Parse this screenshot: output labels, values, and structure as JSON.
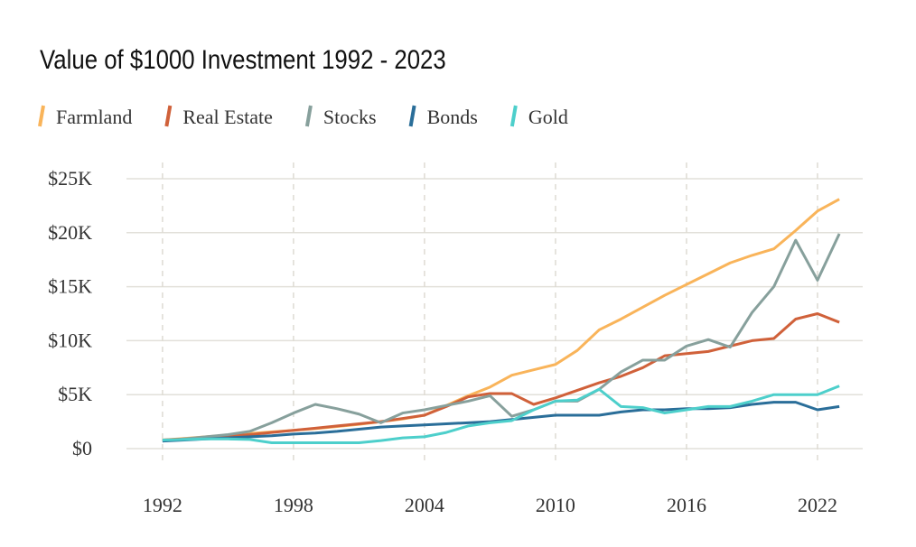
{
  "chart_data": {
    "type": "line",
    "title": "Value of $1000 Investment 1992 - 2023",
    "x": [
      1992,
      1993,
      1994,
      1995,
      1996,
      1997,
      1998,
      1999,
      2000,
      2001,
      2002,
      2003,
      2004,
      2005,
      2006,
      2007,
      2008,
      2009,
      2010,
      2011,
      2012,
      2013,
      2014,
      2015,
      2016,
      2017,
      2018,
      2019,
      2020,
      2021,
      2022,
      2023
    ],
    "series": [
      {
        "name": "Farmland",
        "color": "#f9b45a",
        "values": [
          800,
          950,
          1100,
          1250,
          1400,
          1550,
          1700,
          1850,
          2050,
          2250,
          2500,
          2750,
          3100,
          4000,
          4900,
          5700,
          6800,
          7300,
          7800,
          9100,
          11000,
          12000,
          13100,
          14200,
          15200,
          16200,
          17200,
          17900,
          18500,
          20200,
          22000,
          23100
        ]
      },
      {
        "name": "Real Estate",
        "color": "#d0613a",
        "values": [
          800,
          900,
          1000,
          1150,
          1300,
          1500,
          1700,
          1900,
          2100,
          2300,
          2500,
          2800,
          3100,
          3900,
          4800,
          5100,
          5100,
          4100,
          4700,
          5400,
          6100,
          6700,
          7500,
          8600,
          8800,
          9000,
          9500,
          10000,
          10200,
          12000,
          12500,
          11700
        ]
      },
      {
        "name": "Stocks",
        "color": "#87a09c",
        "values": [
          700,
          900,
          1100,
          1300,
          1600,
          2400,
          3300,
          4100,
          3700,
          3200,
          2400,
          3300,
          3600,
          4000,
          4400,
          4900,
          3000,
          3600,
          4400,
          4400,
          5500,
          7100,
          8200,
          8200,
          9500,
          10100,
          9400,
          12600,
          15000,
          19300,
          15600,
          19900
        ]
      },
      {
        "name": "Bonds",
        "color": "#2a6e99",
        "values": [
          700,
          800,
          900,
          1000,
          1100,
          1200,
          1350,
          1450,
          1600,
          1800,
          2000,
          2100,
          2200,
          2300,
          2400,
          2500,
          2700,
          2900,
          3100,
          3100,
          3100,
          3400,
          3600,
          3600,
          3700,
          3700,
          3800,
          4100,
          4300,
          4300,
          3600,
          3900
        ]
      },
      {
        "name": "Gold",
        "color": "#4dcfcb",
        "values": [
          800,
          850,
          900,
          900,
          850,
          550,
          550,
          550,
          550,
          550,
          750,
          1000,
          1100,
          1500,
          2100,
          2400,
          2600,
          3600,
          4400,
          4500,
          5500,
          3900,
          3800,
          3300,
          3600,
          3900,
          3900,
          4400,
          5000,
          5000,
          5000,
          5800
        ]
      }
    ],
    "xlim": [
      1990.35,
      2024.07
    ],
    "xticks": [
      1992,
      1998,
      2004,
      2010,
      2016,
      2022
    ],
    "ylim": [
      -1500,
      26500
    ],
    "yticks": [
      {
        "value": 0,
        "label": "$0"
      },
      {
        "value": 5000,
        "label": "$5K"
      },
      {
        "value": 10000,
        "label": "$10K"
      },
      {
        "value": 15000,
        "label": "$15K"
      },
      {
        "value": 20000,
        "label": "$20K"
      },
      {
        "value": 25000,
        "label": "$25K"
      }
    ],
    "grid": true,
    "legend": "top-left"
  }
}
